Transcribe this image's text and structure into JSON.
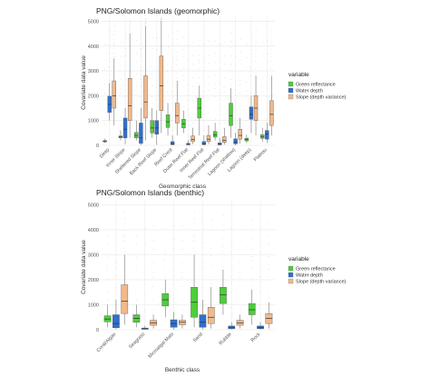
{
  "colors": {
    "Green reflectance": "#4dce3a",
    "Water depth": "#2f6fce",
    "Slope (depth variance)": "#f2b98b"
  },
  "legend_title": "variable",
  "chart_data": [
    {
      "type": "boxplot",
      "title": "PNG/Solomon Islands (geomorphic)",
      "xlabel": "Geomorphic class",
      "ylabel": "Covariate data value",
      "ylim": [
        0,
        5200
      ],
      "yticks": [
        0,
        1000,
        2000,
        3000,
        4000,
        5000
      ],
      "grid": true,
      "legend_position": "right",
      "categories": [
        "Deep",
        "Inner Slope",
        "Sheltered Slope",
        "Back Reef Slope",
        "Reef Crest",
        "Outer Reef Flat",
        "Inner Reef Flat",
        "Terrestrial Reef Flat",
        "Lagoon (shallow)",
        "Lagoon (deep)",
        "Plateau"
      ],
      "series": [
        {
          "name": "Green reflectance",
          "boxes": [
            {
              "category": "Deep",
              "whisker_low": 100,
              "q1": 140,
              "median": 165,
              "q3": 190,
              "whisker_high": 260
            },
            {
              "category": "Inner Slope",
              "whisker_low": 200,
              "q1": 300,
              "median": 340,
              "q3": 380,
              "whisker_high": 600
            },
            {
              "category": "Sheltered Slope",
              "whisker_low": 200,
              "q1": 300,
              "median": 400,
              "q3": 520,
              "whisker_high": 1000
            },
            {
              "category": "Back Reef Slope",
              "whisker_low": 300,
              "q1": 500,
              "median": 700,
              "q3": 1000,
              "whisker_high": 1500
            },
            {
              "category": "Reef Crest",
              "whisker_low": 400,
              "q1": 720,
              "median": 950,
              "q3": 1230,
              "whisker_high": 1700
            },
            {
              "category": "Outer Reef Flat",
              "whisker_low": 500,
              "q1": 700,
              "median": 870,
              "q3": 1050,
              "whisker_high": 1400
            },
            {
              "category": "Inner Reef Flat",
              "whisker_low": 400,
              "q1": 1100,
              "median": 1500,
              "q3": 1900,
              "whisker_high": 2400
            },
            {
              "category": "Terrestrial Reef Flat",
              "whisker_low": 200,
              "q1": 330,
              "median": 420,
              "q3": 560,
              "whisker_high": 900
            },
            {
              "category": "Lagoon (shallow)",
              "whisker_low": 300,
              "q1": 800,
              "median": 1200,
              "q3": 1700,
              "whisker_high": 2300
            },
            {
              "category": "Lagoon (deep)",
              "whisker_low": 100,
              "q1": 180,
              "median": 230,
              "q3": 290,
              "whisker_high": 420
            },
            {
              "category": "Plateau",
              "whisker_low": 150,
              "q1": 280,
              "median": 350,
              "q3": 430,
              "whisker_high": 700
            }
          ]
        },
        {
          "name": "Water depth",
          "boxes": [
            {
              "category": "Deep",
              "whisker_low": 1000,
              "q1": 1330,
              "median": 1650,
              "q3": 1980,
              "whisker_high": 2500
            },
            {
              "category": "Inner Slope",
              "whisker_low": 50,
              "q1": 300,
              "median": 650,
              "q3": 1100,
              "whisker_high": 1500
            },
            {
              "category": "Sheltered Slope",
              "whisker_low": 10,
              "q1": 80,
              "median": 300,
              "q3": 900,
              "whisker_high": 1500
            },
            {
              "category": "Back Reef Slope",
              "whisker_low": 20,
              "q1": 450,
              "median": 700,
              "q3": 1000,
              "whisker_high": 1400
            },
            {
              "category": "Reef Crest",
              "whisker_low": 10,
              "q1": 30,
              "median": 60,
              "q3": 150,
              "whisker_high": 400
            },
            {
              "category": "Outer Reef Flat",
              "whisker_low": 10,
              "q1": 20,
              "median": 40,
              "q3": 80,
              "whisker_high": 200
            },
            {
              "category": "Inner Reef Flat",
              "whisker_low": 10,
              "q1": 30,
              "median": 60,
              "q3": 150,
              "whisker_high": 400
            },
            {
              "category": "Terrestrial Reef Flat",
              "whisker_low": 10,
              "q1": 20,
              "median": 40,
              "q3": 100,
              "whisker_high": 300
            },
            {
              "category": "Lagoon (shallow)",
              "whisker_low": 10,
              "q1": 60,
              "median": 120,
              "q3": 260,
              "whisker_high": 500
            },
            {
              "category": "Lagoon (deep)",
              "whisker_low": 500,
              "q1": 1050,
              "median": 1250,
              "q3": 1550,
              "whisker_high": 2000
            },
            {
              "category": "Plateau",
              "whisker_low": 100,
              "q1": 250,
              "median": 450,
              "q3": 600,
              "whisker_high": 900
            }
          ]
        },
        {
          "name": "Slope (depth variance)",
          "boxes": [
            {
              "category": "Deep",
              "whisker_low": 800,
              "q1": 1500,
              "median": 2000,
              "q3": 2600,
              "whisker_high": 3500
            },
            {
              "category": "Inner Slope",
              "whisker_low": 300,
              "q1": 1000,
              "median": 1600,
              "q3": 2700,
              "whisker_high": 4500
            },
            {
              "category": "Sheltered Slope",
              "whisker_low": 200,
              "q1": 1100,
              "median": 1750,
              "q3": 2800,
              "whisker_high": 4800
            },
            {
              "category": "Back Reef Slope",
              "whisker_low": 500,
              "q1": 1400,
              "median": 2400,
              "q3": 3600,
              "whisker_high": 5000
            },
            {
              "category": "Reef Crest",
              "whisker_low": 400,
              "q1": 900,
              "median": 1200,
              "q3": 1700,
              "whisker_high": 2600
            },
            {
              "category": "Outer Reef Flat",
              "whisker_low": 50,
              "q1": 150,
              "median": 240,
              "q3": 380,
              "whisker_high": 700
            },
            {
              "category": "Inner Reef Flat",
              "whisker_low": 50,
              "q1": 150,
              "median": 250,
              "q3": 400,
              "whisker_high": 800
            },
            {
              "category": "Terrestrial Reef Flat",
              "whisker_low": 30,
              "q1": 120,
              "median": 200,
              "q3": 350,
              "whisker_high": 700
            },
            {
              "category": "Lagoon (shallow)",
              "whisker_low": 80,
              "q1": 250,
              "median": 400,
              "q3": 650,
              "whisker_high": 1100
            },
            {
              "category": "Lagoon (deep)",
              "whisker_low": 400,
              "q1": 1000,
              "median": 1500,
              "q3": 2000,
              "whisker_high": 2800
            },
            {
              "category": "Plateau",
              "whisker_low": 400,
              "q1": 800,
              "median": 1250,
              "q3": 1800,
              "whisker_high": 2800
            }
          ]
        }
      ]
    },
    {
      "type": "boxplot",
      "title": "PNG/Solomon Islands (benthic)",
      "xlabel": "Benthic class",
      "ylabel": "Covariate data value",
      "ylim": [
        0,
        5200
      ],
      "yticks": [
        0,
        1000,
        2000,
        3000,
        4000,
        5000
      ],
      "grid": true,
      "legend_position": "right",
      "categories": [
        "Coral/Algae",
        "Seagrass",
        "Microalgal Mats",
        "Sand",
        "Rubble",
        "Rock"
      ],
      "series": [
        {
          "name": "Green reflectance",
          "boxes": [
            {
              "category": "Coral/Algae",
              "whisker_low": 100,
              "q1": 320,
              "median": 430,
              "q3": 560,
              "whisker_high": 1000
            },
            {
              "category": "Seagrass",
              "whisker_low": 100,
              "q1": 300,
              "median": 450,
              "q3": 600,
              "whisker_high": 1000
            },
            {
              "category": "Microalgal Mats",
              "whisker_low": 500,
              "q1": 950,
              "median": 1200,
              "q3": 1450,
              "whisker_high": 2000
            },
            {
              "category": "Sand",
              "whisker_low": 100,
              "q1": 500,
              "median": 1100,
              "q3": 1700,
              "whisker_high": 3000
            },
            {
              "category": "Rubble",
              "whisker_low": 600,
              "q1": 1050,
              "median": 1400,
              "q3": 1700,
              "whisker_high": 2400
            },
            {
              "category": "Rock",
              "whisker_low": 200,
              "q1": 600,
              "median": 800,
              "q3": 1050,
              "whisker_high": 1600
            }
          ]
        },
        {
          "name": "Water depth",
          "boxes": [
            {
              "category": "Coral/Algae",
              "whisker_low": 10,
              "q1": 80,
              "median": 250,
              "q3": 600,
              "whisker_high": 1200
            },
            {
              "category": "Seagrass",
              "whisker_low": 10,
              "q1": 20,
              "median": 40,
              "q3": 70,
              "whisker_high": 150
            },
            {
              "category": "Microalgal Mats",
              "whisker_low": 10,
              "q1": 100,
              "median": 250,
              "q3": 400,
              "whisker_high": 700
            },
            {
              "category": "Sand",
              "whisker_low": 10,
              "q1": 100,
              "median": 300,
              "q3": 600,
              "whisker_high": 1200
            },
            {
              "category": "Rubble",
              "whisker_low": 10,
              "q1": 40,
              "median": 80,
              "q3": 150,
              "whisker_high": 300
            },
            {
              "category": "Rock",
              "whisker_low": 10,
              "q1": 40,
              "median": 80,
              "q3": 150,
              "whisker_high": 300
            }
          ]
        },
        {
          "name": "Slope (depth variance)",
          "boxes": [
            {
              "category": "Coral/Algae",
              "whisker_low": 200,
              "q1": 650,
              "median": 1150,
              "q3": 1800,
              "whisker_high": 3000
            },
            {
              "category": "Seagrass",
              "whisker_low": 50,
              "q1": 180,
              "median": 280,
              "q3": 380,
              "whisker_high": 600
            },
            {
              "category": "Microalgal Mats",
              "whisker_low": 50,
              "q1": 200,
              "median": 300,
              "q3": 380,
              "whisker_high": 600
            },
            {
              "category": "Sand",
              "whisker_low": 50,
              "q1": 250,
              "median": 500,
              "q3": 900,
              "whisker_high": 1700
            },
            {
              "category": "Rubble",
              "whisker_low": 50,
              "q1": 180,
              "median": 280,
              "q3": 380,
              "whisker_high": 600
            },
            {
              "category": "Rock",
              "whisker_low": 50,
              "q1": 250,
              "median": 450,
              "q3": 650,
              "whisker_high": 1100
            }
          ]
        }
      ]
    }
  ]
}
